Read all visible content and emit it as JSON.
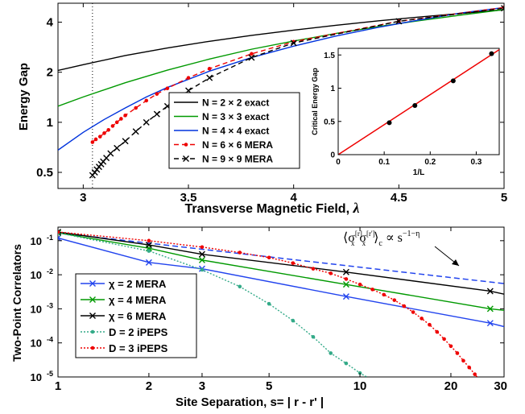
{
  "chart_data": [
    {
      "type": "line",
      "xlabel": "Transverse Magnetic Field,",
      "xlabel_symbol": "λ",
      "ylabel": "Energy Gap",
      "xlim": [
        2.88,
        5.0
      ],
      "ylim": [
        0.4,
        5.2
      ],
      "yscale": "log",
      "xticks": [
        3,
        3.5,
        4,
        4.5,
        5
      ],
      "xtick_labels": [
        "3",
        "3.5",
        "4",
        "4.5",
        "5"
      ],
      "yticks": [
        0.5,
        1,
        2,
        4
      ],
      "ytick_labels": [
        "0.5",
        "1",
        "2",
        "4"
      ],
      "vline_x": 3.044,
      "legend_position": "lower-center",
      "series": [
        {
          "name": "N = 2 × 2 exact",
          "color": "#000000",
          "marker": "none",
          "dash": "solid",
          "x": [
            2.88,
            3.0,
            3.2,
            3.4,
            3.6,
            3.8,
            4.0,
            4.2,
            4.4,
            4.6,
            4.8,
            5.0
          ],
          "y": [
            2.05,
            2.22,
            2.52,
            2.8,
            3.07,
            3.33,
            3.58,
            3.83,
            4.07,
            4.3,
            4.52,
            4.75
          ]
        },
        {
          "name": "N = 3 × 3 exact",
          "color": "#009900",
          "marker": "none",
          "dash": "solid",
          "x": [
            2.88,
            3.0,
            3.2,
            3.4,
            3.6,
            3.8,
            4.0,
            4.2,
            4.4,
            4.6,
            4.8,
            5.0
          ],
          "y": [
            1.25,
            1.42,
            1.73,
            2.06,
            2.4,
            2.75,
            3.08,
            3.42,
            3.76,
            4.09,
            4.42,
            4.76
          ]
        },
        {
          "name": "N = 4 × 4 exact",
          "color": "#0033dd",
          "marker": "none",
          "dash": "solid",
          "x": [
            2.88,
            3.0,
            3.1,
            3.2,
            3.3,
            3.4,
            3.6,
            3.8,
            4.0,
            4.2,
            4.4,
            4.6,
            4.8,
            5.0
          ],
          "y": [
            0.68,
            0.87,
            1.04,
            1.22,
            1.42,
            1.62,
            2.03,
            2.45,
            2.87,
            3.3,
            3.72,
            4.13,
            4.55,
            4.9
          ]
        },
        {
          "name": "N = 6 × 6 MERA",
          "color": "#ee0000",
          "marker": "dot",
          "dash": "dashed",
          "x": [
            3.044,
            3.06,
            3.08,
            3.1,
            3.12,
            3.14,
            3.16,
            3.18,
            3.2,
            3.25,
            3.3,
            3.35,
            3.4,
            3.5,
            3.6,
            3.8,
            4.0,
            4.5,
            5.0
          ],
          "y": [
            0.76,
            0.79,
            0.82,
            0.86,
            0.9,
            0.95,
            1.0,
            1.05,
            1.1,
            1.22,
            1.35,
            1.48,
            1.6,
            1.85,
            2.1,
            2.58,
            3.05,
            4.05,
            4.9
          ]
        },
        {
          "name": "N = 9 × 9 MERA",
          "color": "#000000",
          "marker": "x",
          "dash": "dashed",
          "x": [
            3.044,
            3.055,
            3.065,
            3.075,
            3.085,
            3.095,
            3.11,
            3.13,
            3.16,
            3.2,
            3.25,
            3.3,
            3.35,
            3.4,
            3.5,
            3.6,
            3.8,
            4.0,
            4.5,
            5.0
          ],
          "y": [
            0.48,
            0.5,
            0.52,
            0.54,
            0.56,
            0.58,
            0.61,
            0.65,
            0.7,
            0.77,
            0.88,
            1.0,
            1.12,
            1.25,
            1.55,
            1.85,
            2.45,
            3.0,
            4.05,
            4.85
          ]
        }
      ]
    },
    {
      "type": "scatter",
      "inset": true,
      "xlabel": "1/L",
      "ylabel": "Critical Energy Gap",
      "xlim": [
        0,
        0.35
      ],
      "ylim": [
        0,
        1.6
      ],
      "xticks": [
        0,
        0.1,
        0.2,
        0.3
      ],
      "xtick_labels": [
        "0",
        "0.1",
        "0.2",
        "0.3"
      ],
      "yticks": [
        0,
        0.5,
        1,
        1.5
      ],
      "ytick_labels": [
        "0",
        "0.5",
        "1",
        "1.5"
      ],
      "points": {
        "x": [
          0.1111,
          0.1667,
          0.25,
          0.3333
        ],
        "y": [
          0.48,
          0.74,
          1.11,
          1.52
        ]
      },
      "fit_line": {
        "x": [
          0,
          0.35
        ],
        "y": [
          0,
          1.58
        ],
        "color": "#ee0000"
      }
    },
    {
      "type": "line",
      "xlabel": "Site Separation, s= | r - r' |",
      "ylabel": "Two-Point Correlators",
      "xlim": [
        1,
        30
      ],
      "ylim": [
        1e-05,
        0.25
      ],
      "xscale": "log",
      "yscale": "log",
      "xticks": [
        1,
        2,
        3,
        5,
        10,
        20,
        30
      ],
      "xtick_labels": [
        "1",
        "2",
        "3",
        "5",
        "10",
        "20",
        "30"
      ],
      "yticks": [
        1e-05,
        0.0001,
        0.001,
        0.01,
        0.1
      ],
      "ytick_base": "10",
      "ytick_exponents": [
        "-5",
        "-4",
        "-3",
        "-2",
        "-1"
      ],
      "legend_position": "lower-left",
      "annotation": {
        "text_corr": "⟨σ",
        "power_law": "∝ s",
        "exponent": "−1−η"
      },
      "reference_line": {
        "color": "#2244ee",
        "dash": "dashed",
        "x": [
          1,
          30
        ],
        "y": [
          0.17,
          0.0055
        ]
      },
      "series": [
        {
          "name": "χ = 2 MERA",
          "color": "#2244ee",
          "marker": "x",
          "dash": "solid",
          "x": [
            1,
            2,
            3,
            9,
            27,
            30
          ],
          "y": [
            0.12,
            0.023,
            0.015,
            0.0023,
            0.00038,
            0.0003
          ]
        },
        {
          "name": "χ = 4 MERA",
          "color": "#009900",
          "marker": "x",
          "dash": "solid",
          "x": [
            1,
            2,
            3,
            9,
            27,
            30
          ],
          "y": [
            0.17,
            0.06,
            0.027,
            0.0052,
            0.001,
            0.0009
          ]
        },
        {
          "name": "χ = 6 MERA",
          "color": "#000000",
          "marker": "x",
          "dash": "solid",
          "x": [
            1,
            2,
            3,
            9,
            27,
            30
          ],
          "y": [
            0.18,
            0.075,
            0.04,
            0.012,
            0.0033,
            0.0027
          ]
        },
        {
          "name": "D = 2 iPEPS",
          "color": "#33aa88",
          "marker": "dot",
          "dash": "dotted",
          "x": [
            1,
            2,
            3,
            4,
            5,
            6,
            7,
            8,
            9,
            10,
            11
          ],
          "y": [
            0.17,
            0.05,
            0.014,
            0.0045,
            0.0014,
            0.00045,
            0.00015,
            5e-05,
            2.5e-05,
            1.3e-05,
            8e-06
          ]
        },
        {
          "name": "D = 3 iPEPS",
          "color": "#ee0000",
          "marker": "dot",
          "dash": "dotted",
          "x": [
            1,
            2,
            3,
            4,
            5,
            6,
            7,
            8,
            9,
            10,
            11,
            12,
            13,
            14,
            15,
            16,
            17,
            18,
            19,
            20,
            21,
            22,
            23,
            24,
            25
          ],
          "y": [
            0.18,
            0.1,
            0.065,
            0.045,
            0.032,
            0.022,
            0.015,
            0.011,
            0.0075,
            0.0052,
            0.0037,
            0.0026,
            0.0018,
            0.0012,
            0.0008,
            0.00052,
            0.00034,
            0.00021,
            0.00013,
            8e-05,
            5e-05,
            3e-05,
            1.9e-05,
            1.2e-05,
            8e-06
          ]
        }
      ]
    }
  ]
}
